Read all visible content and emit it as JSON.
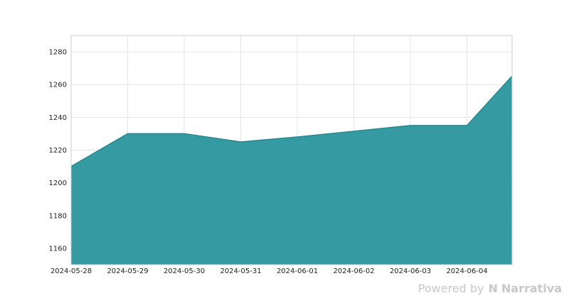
{
  "chart_data": {
    "type": "area",
    "title": "",
    "xlabel": "",
    "ylabel": "",
    "x": [
      "2024-05-28",
      "2024-05-29",
      "2024-05-30",
      "2024-05-31",
      "2024-06-01",
      "2024-06-02",
      "2024-06-03",
      "2024-06-04",
      "2024-06-04T19:00"
    ],
    "series": [
      {
        "values": [
          1210,
          1230,
          1230,
          1225,
          1228,
          1231.5,
          1235,
          1235,
          1265
        ]
      }
    ],
    "x_ticks": [
      "2024-05-28",
      "2024-05-29",
      "2024-05-30",
      "2024-05-31",
      "2024-06-01",
      "2024-06-02",
      "2024-06-03",
      "2024-06-04"
    ],
    "y_ticks": [
      1160,
      1180,
      1200,
      1220,
      1240,
      1260,
      1280
    ],
    "ylim": [
      1150,
      1290
    ],
    "grid": true,
    "colors": {
      "fill": "#2e979f",
      "line": "#2a8790",
      "grid": "#e6e6e6",
      "border": "#cccccc"
    }
  },
  "branding": {
    "powered_by": "Powered by",
    "logo": "N",
    "name": "Narrativa"
  }
}
